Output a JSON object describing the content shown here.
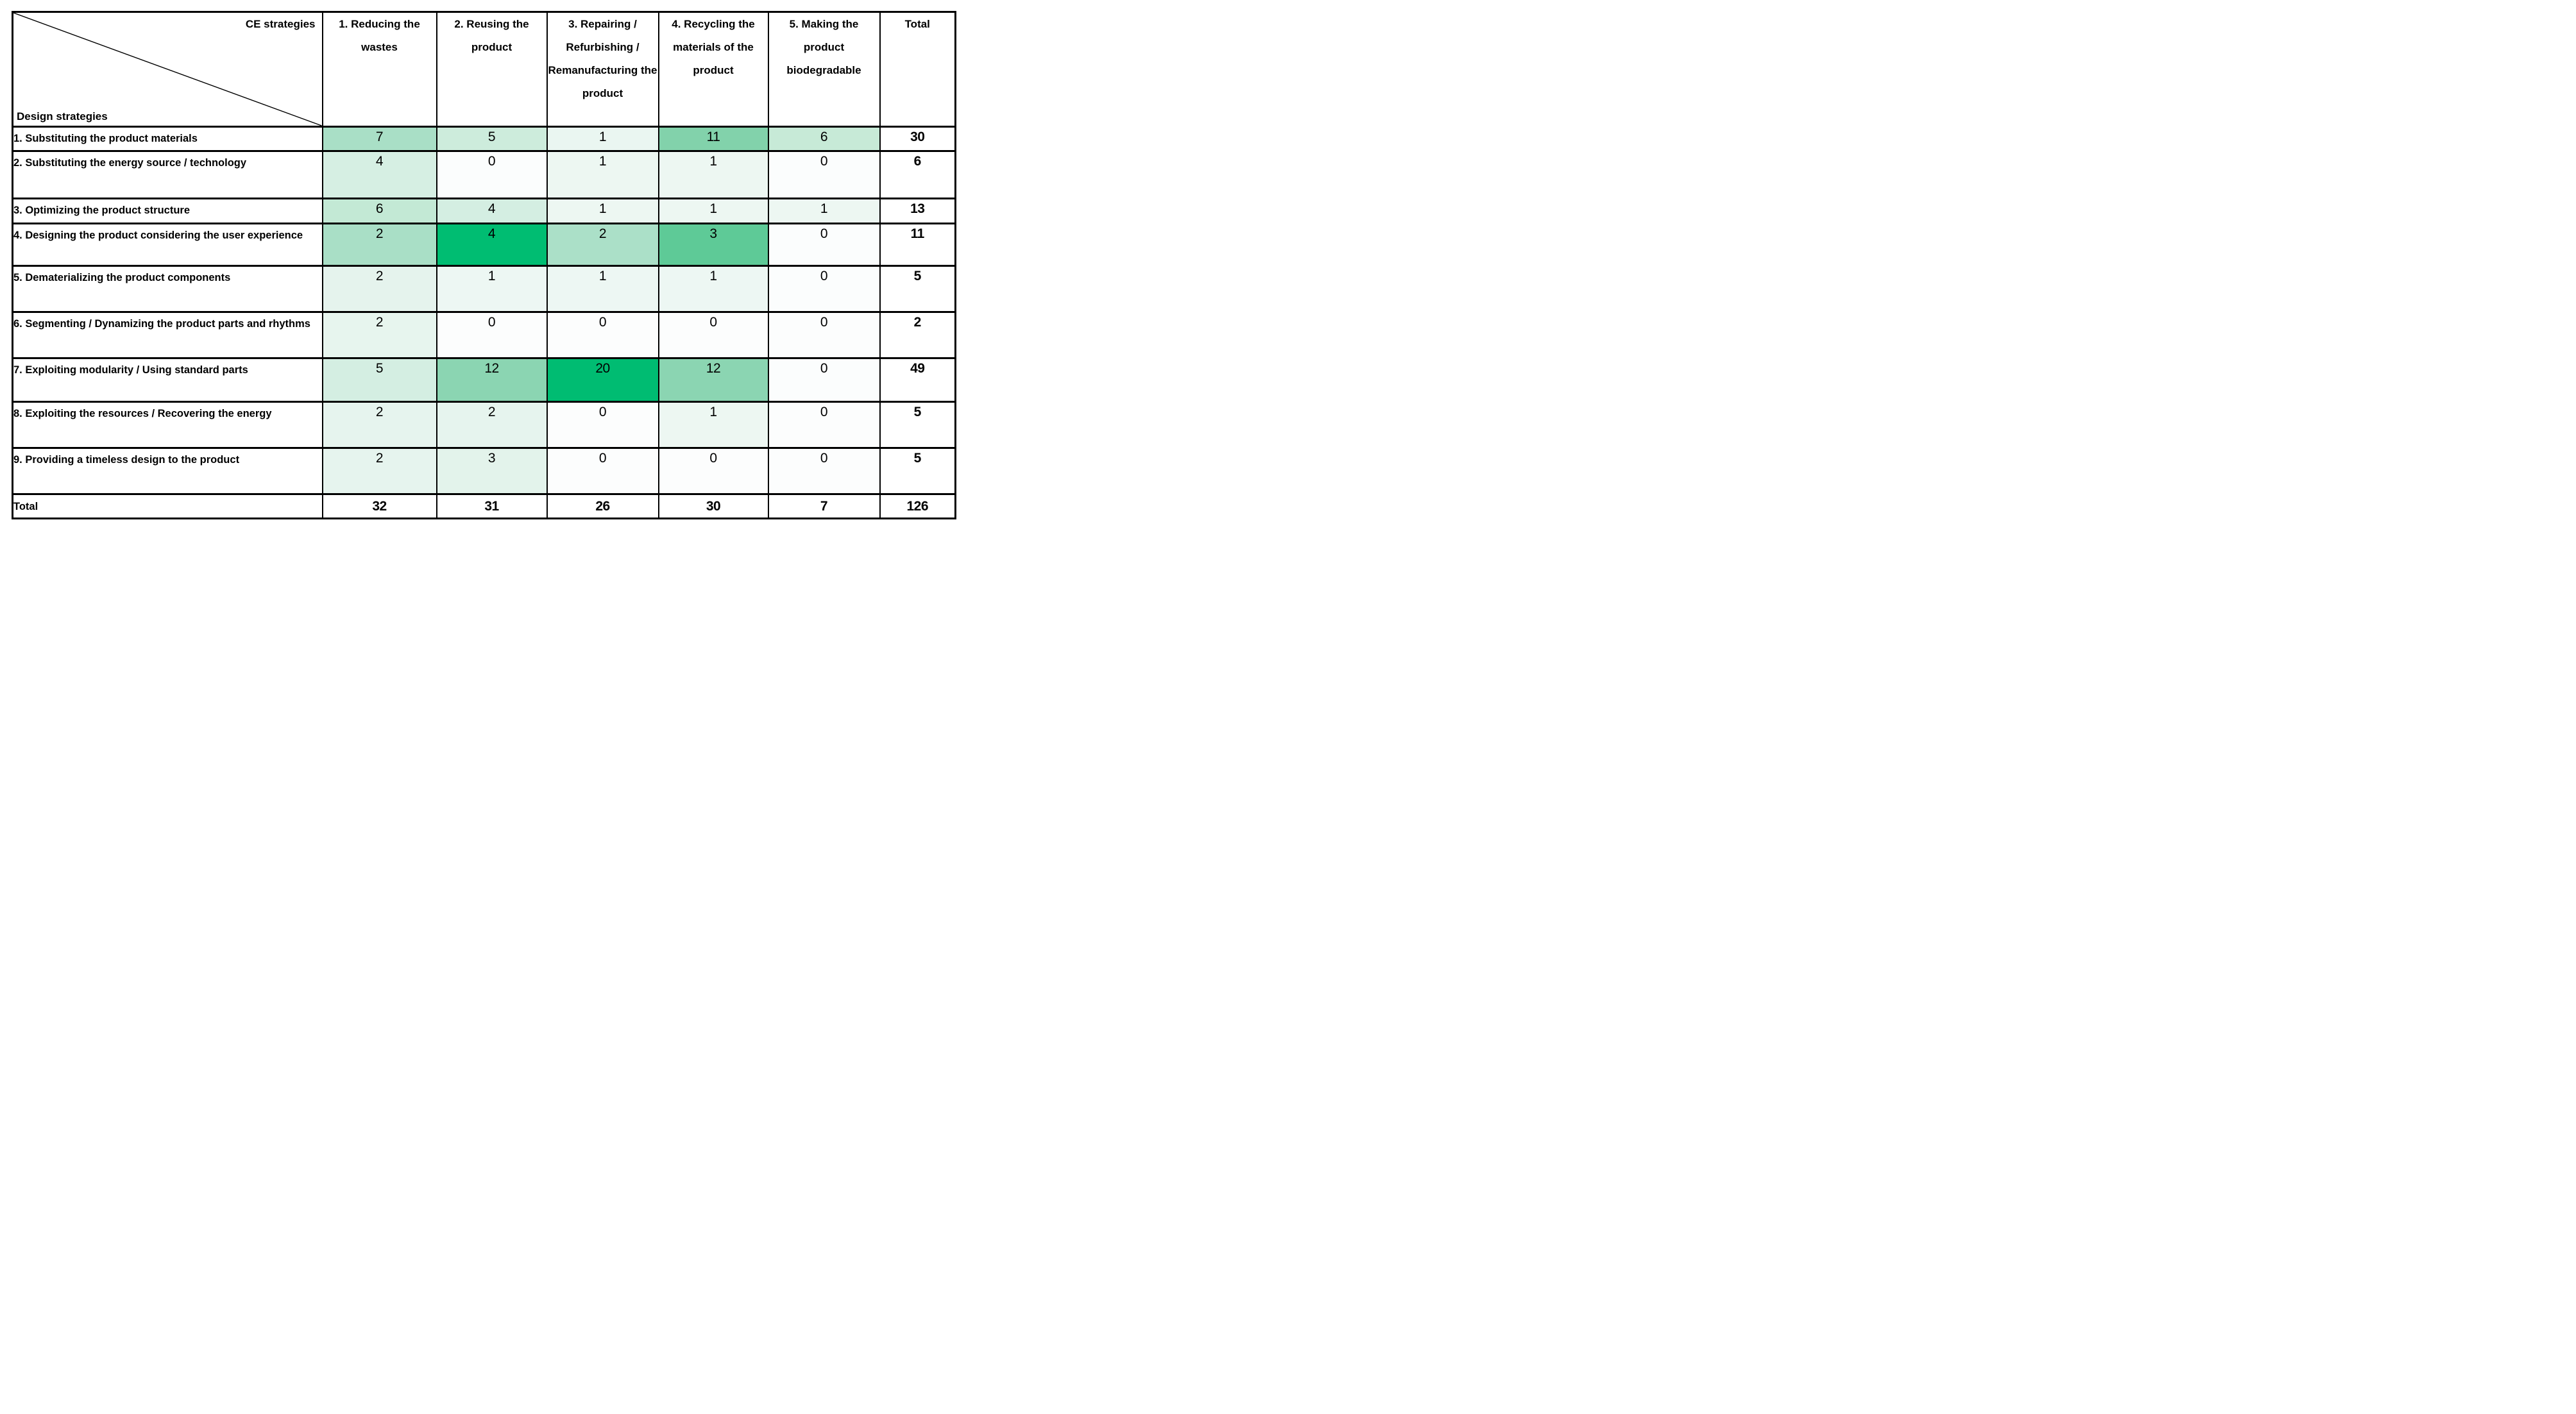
{
  "table": {
    "corner": {
      "top_label": "CE strategies",
      "bottom_label": "Design strategies"
    },
    "columns": [
      {
        "label": "1. Reducing the wastes"
      },
      {
        "label": "2. Reusing the product"
      },
      {
        "label": "3. Repairing / Refurbishing / Remanufacturing the product"
      },
      {
        "label": "4. Recycling the materials of the product"
      },
      {
        "label": "5. Making the product biodegradable"
      },
      {
        "label": "Total"
      }
    ],
    "rows": [
      {
        "label": "1. Substituting the product materials",
        "cells": [
          {
            "v": "7",
            "bg": "#a9dfc6"
          },
          {
            "v": "5",
            "bg": "#cdecdc"
          },
          {
            "v": "1",
            "bg": "#eaf6f1"
          },
          {
            "v": "11",
            "bg": "#82d2ab"
          },
          {
            "v": "6",
            "bg": "#c7ead7"
          }
        ],
        "total": "30"
      },
      {
        "label": "2. Substituting the energy source / technology",
        "cells": [
          {
            "v": "4",
            "bg": "#d6efe3"
          },
          {
            "v": "0",
            "bg": "#fbfdfd"
          },
          {
            "v": "1",
            "bg": "#edf7f2"
          },
          {
            "v": "1",
            "bg": "#edf7f2"
          },
          {
            "v": "0",
            "bg": "#fbfdfd"
          }
        ],
        "total": "6"
      },
      {
        "label": "3. Optimizing the product structure",
        "cells": [
          {
            "v": "6",
            "bg": "#c3e9d5"
          },
          {
            "v": "4",
            "bg": "#d4eee2"
          },
          {
            "v": "1",
            "bg": "#edf7f2"
          },
          {
            "v": "1",
            "bg": "#edf7f2"
          },
          {
            "v": "1",
            "bg": "#edf7f2"
          }
        ],
        "total": "13"
      },
      {
        "label": "4. Designing the product considering the user experience",
        "cells": [
          {
            "v": "2",
            "bg": "#a9dfc6"
          },
          {
            "v": "4",
            "bg": "#00bd72"
          },
          {
            "v": "2",
            "bg": "#abe0c8"
          },
          {
            "v": "3",
            "bg": "#5eca97"
          },
          {
            "v": "0",
            "bg": "#fbfdfd"
          }
        ],
        "total": "11"
      },
      {
        "label": "5. Dematerializing the product components",
        "cells": [
          {
            "v": "2",
            "bg": "#e5f3ed"
          },
          {
            "v": "1",
            "bg": "#edf7f3"
          },
          {
            "v": "1",
            "bg": "#edf7f3"
          },
          {
            "v": "1",
            "bg": "#edf7f3"
          },
          {
            "v": "0",
            "bg": "#fbfdfd"
          }
        ],
        "total": "5"
      },
      {
        "label": "6. Segmenting / Dynamizing the product parts and rhythms",
        "cells": [
          {
            "v": "2",
            "bg": "#e7f5ee"
          },
          {
            "v": "0",
            "bg": "#fcfdfd"
          },
          {
            "v": "0",
            "bg": "#fcfdfd"
          },
          {
            "v": "0",
            "bg": "#fcfdfd"
          },
          {
            "v": "0",
            "bg": "#fcfdfd"
          }
        ],
        "total": "2"
      },
      {
        "label": "7. Exploiting modularity / Using standard parts",
        "cells": [
          {
            "v": "5",
            "bg": "#d4eee2"
          },
          {
            "v": "12",
            "bg": "#8bd5b2"
          },
          {
            "v": "20",
            "bg": "#00bc72"
          },
          {
            "v": "12",
            "bg": "#8bd5b2"
          },
          {
            "v": "0",
            "bg": "#fbfdfd"
          }
        ],
        "total": "49"
      },
      {
        "label": "8. Exploiting the resources / Recovering the energy",
        "cells": [
          {
            "v": "2",
            "bg": "#e6f4ee"
          },
          {
            "v": "2",
            "bg": "#e6f4ee"
          },
          {
            "v": "0",
            "bg": "#fcfdfd"
          },
          {
            "v": "1",
            "bg": "#edf7f2"
          },
          {
            "v": "0",
            "bg": "#fcfdfd"
          }
        ],
        "total": "5"
      },
      {
        "label": "9. Providing a timeless design to the product",
        "cells": [
          {
            "v": "2",
            "bg": "#e6f4ee"
          },
          {
            "v": "3",
            "bg": "#e3f3eb"
          },
          {
            "v": "0",
            "bg": "#fcfdfd"
          },
          {
            "v": "0",
            "bg": "#fcfdfd"
          },
          {
            "v": "0",
            "bg": "#fcfdfd"
          }
        ],
        "total": "5"
      }
    ],
    "total_row": {
      "label": "Total",
      "values": [
        "32",
        "31",
        "26",
        "30",
        "7"
      ],
      "grand": "126"
    }
  },
  "chart_data": {
    "type": "heatmap",
    "xlabel": "CE strategies",
    "ylabel": "Design strategies",
    "x_categories": [
      "1. Reducing the wastes",
      "2. Reusing the product",
      "3. Repairing / Refurbishing / Remanufacturing the product",
      "4. Recycling the materials of the product",
      "5. Making the product biodegradable"
    ],
    "y_categories": [
      "1. Substituting the product materials",
      "2. Substituting the energy source / technology",
      "3. Optimizing the product structure",
      "4. Designing the product considering the user experience",
      "5. Dematerializing the product components",
      "6. Segmenting / Dynamizing the product parts and rhythms",
      "7. Exploiting modularity / Using standard parts",
      "8. Exploiting the resources / Recovering the energy",
      "9. Providing a timeless design to the product"
    ],
    "values": [
      [
        7,
        5,
        1,
        11,
        6
      ],
      [
        4,
        0,
        1,
        1,
        0
      ],
      [
        6,
        4,
        1,
        1,
        1
      ],
      [
        2,
        4,
        2,
        3,
        0
      ],
      [
        2,
        1,
        1,
        1,
        0
      ],
      [
        2,
        0,
        0,
        0,
        0
      ],
      [
        5,
        12,
        20,
        12,
        0
      ],
      [
        2,
        2,
        0,
        1,
        0
      ],
      [
        2,
        3,
        0,
        0,
        0
      ]
    ],
    "row_totals": [
      30,
      6,
      13,
      11,
      5,
      2,
      49,
      5,
      5
    ],
    "column_totals": [
      32,
      31,
      26,
      30,
      7
    ],
    "grand_total": 126,
    "color_scale": {
      "low": "#ffffff",
      "high": "#00bc72"
    },
    "grid": true,
    "legend_position": "none"
  }
}
